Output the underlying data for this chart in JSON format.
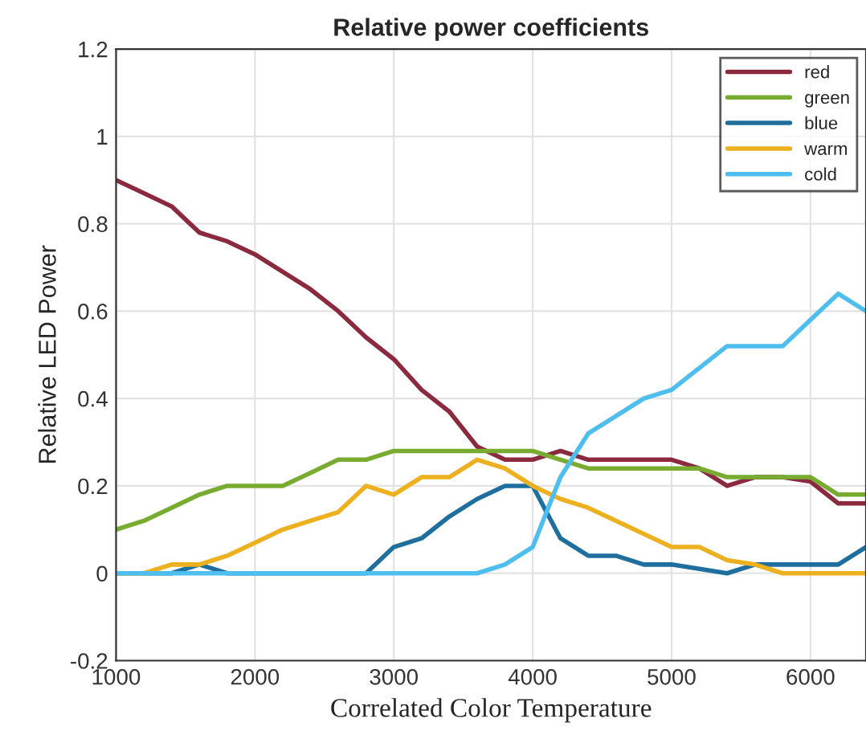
{
  "chart_data": {
    "type": "line",
    "title": "Relative power coefficients",
    "xlabel": "Correlated Color Temperature",
    "ylabel": "Relative LED Power",
    "x": [
      1000,
      1200,
      1400,
      1600,
      1800,
      2000,
      2200,
      2400,
      2600,
      2800,
      3000,
      3200,
      3400,
      3600,
      3800,
      4000,
      4200,
      4400,
      4600,
      4800,
      5000,
      5200,
      5400,
      5600,
      5800,
      6000,
      6200,
      6400
    ],
    "series": [
      {
        "name": "red",
        "color": "#8b2a3f",
        "values": [
          0.9,
          0.87,
          0.84,
          0.78,
          0.76,
          0.73,
          0.69,
          0.65,
          0.6,
          0.54,
          0.49,
          0.42,
          0.37,
          0.29,
          0.26,
          0.26,
          0.28,
          0.26,
          0.26,
          0.26,
          0.26,
          0.24,
          0.2,
          0.22,
          0.22,
          0.21,
          0.16,
          0.16
        ]
      },
      {
        "name": "green",
        "color": "#77ac30",
        "values": [
          0.1,
          0.12,
          0.15,
          0.18,
          0.2,
          0.2,
          0.2,
          0.23,
          0.26,
          0.26,
          0.28,
          0.28,
          0.28,
          0.28,
          0.28,
          0.28,
          0.26,
          0.24,
          0.24,
          0.24,
          0.24,
          0.24,
          0.22,
          0.22,
          0.22,
          0.22,
          0.18,
          0.18
        ]
      },
      {
        "name": "blue",
        "color": "#1f6f9e",
        "values": [
          0,
          0,
          0,
          0.02,
          0,
          0,
          0,
          0,
          0,
          0,
          0.06,
          0.08,
          0.13,
          0.17,
          0.2,
          0.2,
          0.08,
          0.04,
          0.04,
          0.02,
          0.02,
          0.01,
          0,
          0.02,
          0.02,
          0.02,
          0.02,
          0.06
        ]
      },
      {
        "name": "warm",
        "color": "#edb120",
        "values": [
          0,
          0,
          0.02,
          0.02,
          0.04,
          0.07,
          0.1,
          0.12,
          0.14,
          0.2,
          0.18,
          0.22,
          0.22,
          0.26,
          0.24,
          0.2,
          0.17,
          0.15,
          0.12,
          0.09,
          0.06,
          0.06,
          0.03,
          0.02,
          0,
          0,
          0,
          0
        ]
      },
      {
        "name": "cold",
        "color": "#4dbeee",
        "values": [
          0,
          0,
          0,
          0,
          0,
          0,
          0,
          0,
          0,
          0,
          0,
          0,
          0,
          0,
          0.02,
          0.06,
          0.22,
          0.32,
          0.36,
          0.4,
          0.42,
          0.47,
          0.52,
          0.52,
          0.52,
          0.58,
          0.64,
          0.6
        ]
      }
    ],
    "xlim": [
      1000,
      6400
    ],
    "xticks": [
      1000,
      2000,
      3000,
      4000,
      5000,
      6000
    ],
    "ylim": [
      -0.2,
      1.2
    ],
    "yticks": [
      {
        "value": -0.2,
        "label": "-0.2"
      },
      0,
      0.2,
      0.4,
      0.6,
      0.8,
      1,
      1.2
    ],
    "grid": true,
    "legend": "top right",
    "line_style": "solid",
    "marker": "none"
  }
}
